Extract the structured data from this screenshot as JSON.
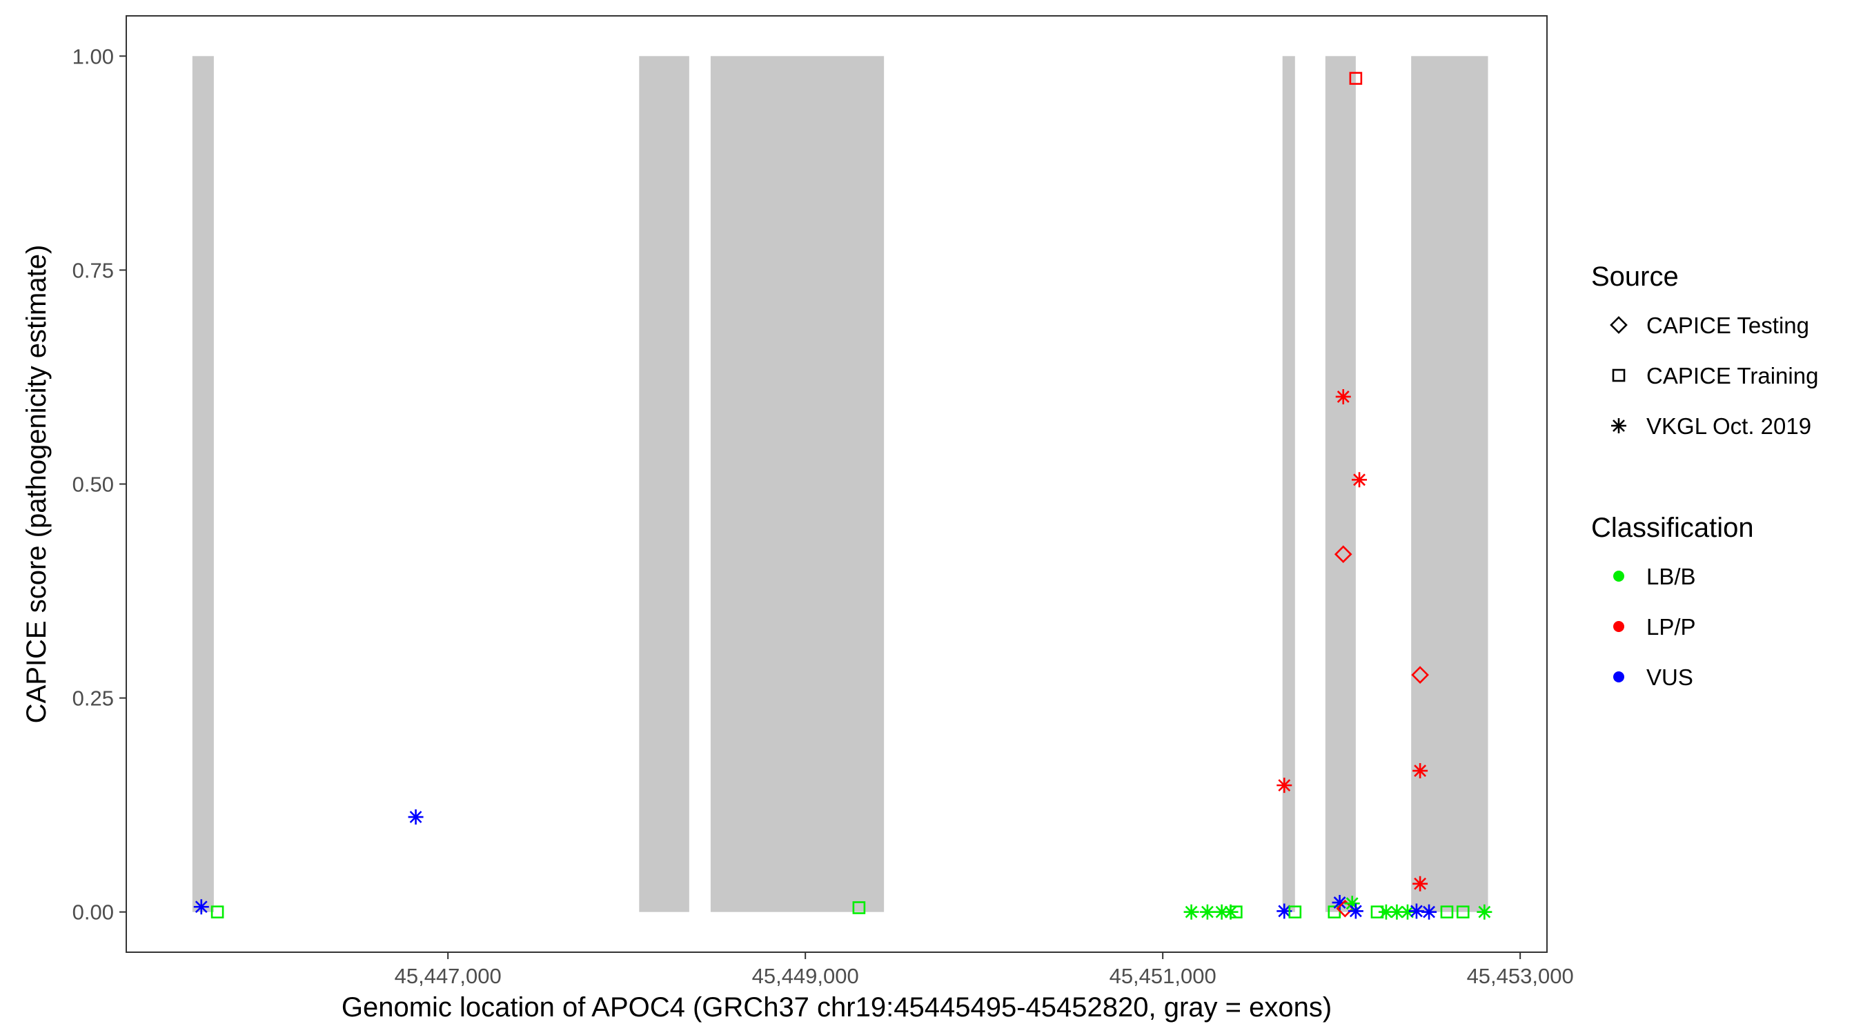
{
  "chart_data": {
    "type": "scatter",
    "title": "",
    "xlabel": "Genomic location of APOC4 (GRCh37 chr19:45445495-45452820, gray = exons)",
    "ylabel": "CAPICE score (pathogenicity estimate)",
    "xlim": [
      45445200,
      45453150
    ],
    "ylim": [
      -0.047,
      1.047
    ],
    "x_ticks": [
      45447000,
      45449000,
      45451000,
      45453000
    ],
    "x_tick_labels": [
      "45,447,000",
      "45,449,000",
      "45,451,000",
      "45,453,000"
    ],
    "y_ticks": [
      0,
      0.25,
      0.5,
      0.75,
      1.0
    ],
    "y_tick_labels": [
      "0.00",
      "0.25",
      "0.50",
      "0.75",
      "1.00"
    ],
    "grid": false,
    "exons": [
      [
        45445570,
        45445690
      ],
      [
        45448070,
        45448350
      ],
      [
        45448470,
        45449440
      ],
      [
        45451670,
        45451740
      ],
      [
        45451910,
        45452080
      ],
      [
        45452390,
        45452820
      ]
    ],
    "legend_source": {
      "title": "Source",
      "entries": [
        {
          "label": "CAPICE Testing",
          "shape": "diamond"
        },
        {
          "label": "CAPICE Training",
          "shape": "square"
        },
        {
          "label": "VKGL Oct. 2019",
          "shape": "asterisk"
        }
      ]
    },
    "legend_classification": {
      "title": "Classification",
      "entries": [
        {
          "label": "LB/B",
          "color": "#00ee00"
        },
        {
          "label": "LP/P",
          "color": "#ff0000"
        },
        {
          "label": "VUS",
          "color": "#0000ff"
        }
      ]
    },
    "legend_position": "right",
    "points": [
      {
        "x": 45445620,
        "y": 0.006,
        "source": "VKGL Oct. 2019",
        "class": "VUS"
      },
      {
        "x": 45445710,
        "y": 0.0,
        "source": "CAPICE Training",
        "class": "LB/B"
      },
      {
        "x": 45446820,
        "y": 0.111,
        "source": "VKGL Oct. 2019",
        "class": "VUS"
      },
      {
        "x": 45449300,
        "y": 0.005,
        "source": "CAPICE Training",
        "class": "LB/B"
      },
      {
        "x": 45451160,
        "y": 0.0,
        "source": "VKGL Oct. 2019",
        "class": "LB/B"
      },
      {
        "x": 45451250,
        "y": 0.0,
        "source": "VKGL Oct. 2019",
        "class": "LB/B"
      },
      {
        "x": 45451330,
        "y": 0.0,
        "source": "VKGL Oct. 2019",
        "class": "LB/B"
      },
      {
        "x": 45451380,
        "y": 0.0,
        "source": "VKGL Oct. 2019",
        "class": "LB/B"
      },
      {
        "x": 45451410,
        "y": 0.0,
        "source": "CAPICE Training",
        "class": "LB/B"
      },
      {
        "x": 45451680,
        "y": 0.148,
        "source": "VKGL Oct. 2019",
        "class": "LP/P"
      },
      {
        "x": 45451680,
        "y": 0.001,
        "source": "VKGL Oct. 2019",
        "class": "VUS"
      },
      {
        "x": 45451740,
        "y": 0.0,
        "source": "CAPICE Training",
        "class": "LB/B"
      },
      {
        "x": 45451960,
        "y": 0.0,
        "source": "CAPICE Training",
        "class": "LB/B"
      },
      {
        "x": 45451990,
        "y": 0.011,
        "source": "VKGL Oct. 2019",
        "class": "VUS"
      },
      {
        "x": 45452010,
        "y": 0.602,
        "source": "VKGL Oct. 2019",
        "class": "LP/P"
      },
      {
        "x": 45452010,
        "y": 0.418,
        "source": "CAPICE Testing",
        "class": "LP/P"
      },
      {
        "x": 45452020,
        "y": 0.004,
        "source": "CAPICE Testing",
        "class": "LP/P"
      },
      {
        "x": 45452060,
        "y": 0.01,
        "source": "VKGL Oct. 2019",
        "class": "LB/B"
      },
      {
        "x": 45452080,
        "y": 0.974,
        "source": "CAPICE Training",
        "class": "LP/P"
      },
      {
        "x": 45452080,
        "y": 0.001,
        "source": "VKGL Oct. 2019",
        "class": "VUS"
      },
      {
        "x": 45452100,
        "y": 0.505,
        "source": "VKGL Oct. 2019",
        "class": "LP/P"
      },
      {
        "x": 45452200,
        "y": 0.0,
        "source": "CAPICE Training",
        "class": "LB/B"
      },
      {
        "x": 45452250,
        "y": 0.0,
        "source": "VKGL Oct. 2019",
        "class": "LB/B"
      },
      {
        "x": 45452310,
        "y": 0.0,
        "source": "VKGL Oct. 2019",
        "class": "LB/B"
      },
      {
        "x": 45452370,
        "y": 0.0,
        "source": "VKGL Oct. 2019",
        "class": "LB/B"
      },
      {
        "x": 45452420,
        "y": 0.001,
        "source": "VKGL Oct. 2019",
        "class": "VUS"
      },
      {
        "x": 45452440,
        "y": 0.277,
        "source": "CAPICE Testing",
        "class": "LP/P"
      },
      {
        "x": 45452440,
        "y": 0.165,
        "source": "VKGL Oct. 2019",
        "class": "LP/P"
      },
      {
        "x": 45452440,
        "y": 0.033,
        "source": "VKGL Oct. 2019",
        "class": "LP/P"
      },
      {
        "x": 45452490,
        "y": 0.0,
        "source": "VKGL Oct. 2019",
        "class": "VUS"
      },
      {
        "x": 45452590,
        "y": 0.0,
        "source": "CAPICE Training",
        "class": "LB/B"
      },
      {
        "x": 45452680,
        "y": 0.0,
        "source": "CAPICE Training",
        "class": "LB/B"
      },
      {
        "x": 45452800,
        "y": 0.0,
        "source": "VKGL Oct. 2019",
        "class": "LB/B"
      }
    ]
  }
}
